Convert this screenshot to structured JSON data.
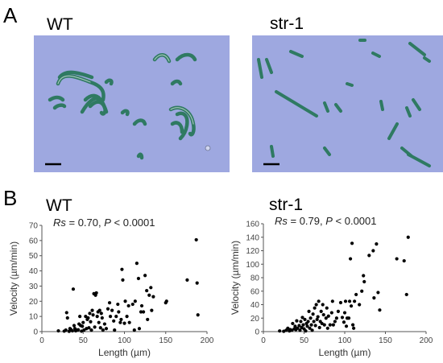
{
  "figure": {
    "panel_a": {
      "letter": "A",
      "wt_title": "WT",
      "str_title": "str-1",
      "bg_color": "#9ea8e0",
      "filament_color": "#2f7a62"
    },
    "panel_b": {
      "letter": "B",
      "wt_title": "WT",
      "str_title": "str-1"
    }
  },
  "chart_data": [
    {
      "type": "scatter",
      "title": "WT",
      "stat": {
        "rs_label": "Rs",
        "rs_value": " = 0.70, ",
        "p_label": "P",
        "p_value": " < 0.0001"
      },
      "xlabel": "Length (µm)",
      "ylabel": "Velocity (µm/min)",
      "xlim": [
        0,
        200
      ],
      "ylim": [
        0,
        70
      ],
      "xticks": [
        0,
        50,
        100,
        150,
        200
      ],
      "yticks": [
        0,
        10,
        20,
        30,
        40,
        50,
        60,
        70
      ],
      "color": "#000000",
      "points": [
        [
          20,
          0.5
        ],
        [
          27,
          0.3
        ],
        [
          29,
          1
        ],
        [
          30,
          12.5
        ],
        [
          31,
          9
        ],
        [
          33,
          0.2
        ],
        [
          34,
          2
        ],
        [
          35,
          1.5
        ],
        [
          37,
          0.5
        ],
        [
          38,
          28
        ],
        [
          39,
          4
        ],
        [
          40,
          2
        ],
        [
          41,
          0.5
        ],
        [
          42,
          1
        ],
        [
          44,
          1.2
        ],
        [
          45,
          5
        ],
        [
          46,
          10
        ],
        [
          47,
          4
        ],
        [
          48,
          0.3
        ],
        [
          49,
          3.5
        ],
        [
          50,
          6
        ],
        [
          51,
          1
        ],
        [
          53,
          10
        ],
        [
          54,
          2
        ],
        [
          55,
          8
        ],
        [
          56,
          9
        ],
        [
          57,
          2.5
        ],
        [
          58,
          12
        ],
        [
          59,
          6.5
        ],
        [
          60,
          1
        ],
        [
          61,
          14
        ],
        [
          62,
          11
        ],
        [
          63,
          25
        ],
        [
          64,
          3
        ],
        [
          65,
          24
        ],
        [
          66,
          25.5
        ],
        [
          67,
          10
        ],
        [
          68,
          13
        ],
        [
          69,
          6
        ],
        [
          70,
          14
        ],
        [
          71,
          2.5
        ],
        [
          72,
          12
        ],
        [
          73,
          9
        ],
        [
          74,
          1
        ],
        [
          76,
          5
        ],
        [
          78,
          2
        ],
        [
          80,
          15
        ],
        [
          82,
          19
        ],
        [
          83,
          10
        ],
        [
          85,
          14
        ],
        [
          87,
          7
        ],
        [
          88,
          1
        ],
        [
          90,
          10
        ],
        [
          92,
          18
        ],
        [
          93,
          13
        ],
        [
          95,
          6
        ],
        [
          96,
          8
        ],
        [
          97,
          41
        ],
        [
          98,
          34
        ],
        [
          100,
          5.5
        ],
        [
          101,
          20
        ],
        [
          103,
          10
        ],
        [
          105,
          17
        ],
        [
          106,
          6
        ],
        [
          110,
          18
        ],
        [
          112,
          1
        ],
        [
          113,
          20
        ],
        [
          115,
          45
        ],
        [
          117,
          35
        ],
        [
          118,
          2
        ],
        [
          120,
          13
        ],
        [
          121,
          17
        ],
        [
          123,
          13
        ],
        [
          125,
          37
        ],
        [
          127,
          27
        ],
        [
          128,
          8
        ],
        [
          130,
          24
        ],
        [
          132,
          29
        ],
        [
          133,
          14
        ],
        [
          135,
          23
        ],
        [
          150,
          19
        ],
        [
          151,
          20
        ],
        [
          176,
          34
        ],
        [
          187,
          60.5
        ],
        [
          188,
          32
        ],
        [
          189,
          11
        ]
      ]
    },
    {
      "type": "scatter",
      "title": "str-1",
      "stat": {
        "rs_label": "Rs",
        "rs_value": " = 0.79, ",
        "p_label": "P",
        "p_value": " < 0.0001"
      },
      "xlabel": "Length (µm)",
      "ylabel": "Velocity (µm/min)",
      "xlim": [
        0,
        200
      ],
      "ylim": [
        0,
        160
      ],
      "xticks": [
        0,
        50,
        100,
        150,
        200
      ],
      "yticks": [
        0,
        20,
        40,
        60,
        80,
        100,
        120,
        140,
        160
      ],
      "color": "#000000",
      "points": [
        [
          20,
          1
        ],
        [
          25,
          0.5
        ],
        [
          28,
          2
        ],
        [
          30,
          5
        ],
        [
          32,
          1
        ],
        [
          33,
          3
        ],
        [
          35,
          2
        ],
        [
          36,
          12
        ],
        [
          38,
          4
        ],
        [
          39,
          8
        ],
        [
          40,
          3
        ],
        [
          41,
          16
        ],
        [
          42,
          5
        ],
        [
          44,
          9
        ],
        [
          45,
          2
        ],
        [
          46,
          15
        ],
        [
          47,
          6
        ],
        [
          48,
          21
        ],
        [
          49,
          10
        ],
        [
          50,
          4
        ],
        [
          51,
          18
        ],
        [
          52,
          1
        ],
        [
          53,
          12
        ],
        [
          54,
          8
        ],
        [
          55,
          15
        ],
        [
          56,
          30
        ],
        [
          57,
          5
        ],
        [
          58,
          20
        ],
        [
          59,
          10
        ],
        [
          60,
          2
        ],
        [
          61,
          26
        ],
        [
          62,
          15
        ],
        [
          63,
          35
        ],
        [
          64,
          9
        ],
        [
          65,
          40
        ],
        [
          66,
          18
        ],
        [
          67,
          22
        ],
        [
          68,
          45
        ],
        [
          69,
          6
        ],
        [
          70,
          15
        ],
        [
          71,
          30
        ],
        [
          72,
          12
        ],
        [
          73,
          40
        ],
        [
          74,
          25
        ],
        [
          75,
          10
        ],
        [
          77,
          20
        ],
        [
          78,
          35
        ],
        [
          79,
          5
        ],
        [
          80,
          23
        ],
        [
          82,
          10
        ],
        [
          84,
          28
        ],
        [
          85,
          45
        ],
        [
          86,
          10
        ],
        [
          88,
          15
        ],
        [
          90,
          20
        ],
        [
          92,
          30
        ],
        [
          95,
          43
        ],
        [
          97,
          21
        ],
        [
          99,
          14
        ],
        [
          100,
          28
        ],
        [
          101,
          45
        ],
        [
          102,
          8
        ],
        [
          103,
          20
        ],
        [
          105,
          20
        ],
        [
          106,
          45
        ],
        [
          107,
          108
        ],
        [
          108,
          38
        ],
        [
          109,
          131
        ],
        [
          110,
          10
        ],
        [
          111,
          5
        ],
        [
          112,
          45
        ],
        [
          114,
          55
        ],
        [
          118,
          40
        ],
        [
          121,
          60
        ],
        [
          123,
          83
        ],
        [
          124,
          74
        ],
        [
          130,
          113
        ],
        [
          135,
          120
        ],
        [
          136,
          50
        ],
        [
          139,
          130
        ],
        [
          141,
          58
        ],
        [
          143,
          32
        ],
        [
          164,
          108
        ],
        [
          173,
          105
        ],
        [
          176,
          55
        ],
        [
          178,
          140
        ]
      ]
    }
  ]
}
